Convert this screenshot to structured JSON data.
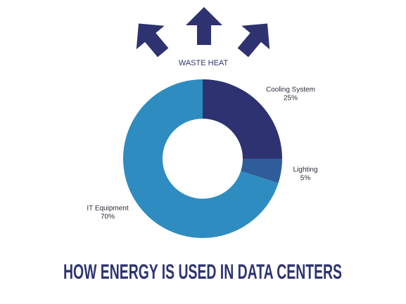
{
  "chart_data": {
    "type": "donut",
    "title": "HOW ENERGY IS USED IN DATA CENTERS",
    "annotation": "WASTE HEAT",
    "categories": [
      "Cooling System",
      "Lighting",
      "IT Equipment"
    ],
    "values": [
      25,
      5,
      70
    ],
    "value_labels": [
      "25%",
      "5%",
      "70%"
    ],
    "colors": [
      "#2e3270",
      "#2e5d9a",
      "#2e8cc0"
    ]
  }
}
